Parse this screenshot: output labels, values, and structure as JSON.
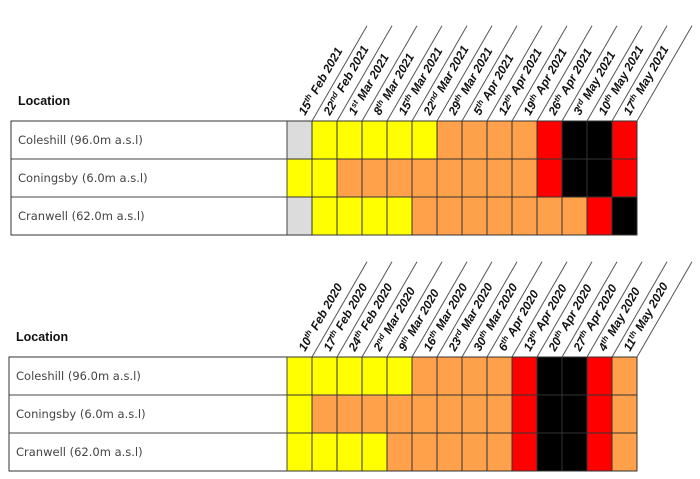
{
  "colors": {
    "gray": "#dcdcdc",
    "yellow": "#ffff00",
    "orange": "#ffa14a",
    "red": "#ff0000",
    "black": "#000000"
  },
  "chart_data": [
    {
      "type": "table",
      "header": "Location",
      "locations": [
        "Coleshill (96.0m a.s.l)",
        "Coningsby (6.0m a.s.l)",
        "Cranwell (62.0m a.s.l)"
      ],
      "dates": [
        {
          "day": "15",
          "suffix": "th",
          "rest": " Feb 2021"
        },
        {
          "day": "22",
          "suffix": "nd",
          "rest": " Feb 2021"
        },
        {
          "day": "1",
          "suffix": "st",
          "rest": " Mar 2021"
        },
        {
          "day": "8",
          "suffix": "th",
          "rest": " Mar 2021"
        },
        {
          "day": "15",
          "suffix": "th",
          "rest": " Mar 2021"
        },
        {
          "day": "22",
          "suffix": "nd",
          "rest": " Mar 2021"
        },
        {
          "day": "29",
          "suffix": "th",
          "rest": " Mar 2021"
        },
        {
          "day": "5",
          "suffix": "th",
          "rest": " Apr 2021"
        },
        {
          "day": "12",
          "suffix": "th",
          "rest": " Apr 2021"
        },
        {
          "day": "19",
          "suffix": "th",
          "rest": " Apr 2021"
        },
        {
          "day": "26",
          "suffix": "th",
          "rest": " Apr 2021"
        },
        {
          "day": "3",
          "suffix": "rd",
          "rest": " May 2021"
        },
        {
          "day": "10",
          "suffix": "th",
          "rest": " May 2021"
        },
        {
          "day": "17",
          "suffix": "th",
          "rest": " May 2021"
        }
      ],
      "cells": [
        [
          "gray",
          "yellow",
          "yellow",
          "yellow",
          "yellow",
          "yellow",
          "orange",
          "orange",
          "orange",
          "orange",
          "red",
          "black",
          "black",
          "red"
        ],
        [
          "yellow",
          "yellow",
          "orange",
          "orange",
          "orange",
          "orange",
          "orange",
          "orange",
          "orange",
          "orange",
          "red",
          "black",
          "black",
          "red"
        ],
        [
          "gray",
          "yellow",
          "yellow",
          "yellow",
          "yellow",
          "orange",
          "orange",
          "orange",
          "orange",
          "orange",
          "orange",
          "orange",
          "red",
          "black"
        ]
      ]
    },
    {
      "type": "table",
      "header": "Location",
      "locations": [
        "Coleshill (96.0m a.s.l)",
        "Coningsby (6.0m a.s.l)",
        "Cranwell (62.0m a.s.l)"
      ],
      "dates": [
        {
          "day": "10",
          "suffix": "th",
          "rest": " Feb 2020"
        },
        {
          "day": "17",
          "suffix": "th",
          "rest": " Feb 2020"
        },
        {
          "day": "24",
          "suffix": "th",
          "rest": " Feb 2020"
        },
        {
          "day": "2",
          "suffix": "nd",
          "rest": " Mar 2020"
        },
        {
          "day": "9",
          "suffix": "th",
          "rest": " Mar 2020"
        },
        {
          "day": "16",
          "suffix": "th",
          "rest": " Mar 2020"
        },
        {
          "day": "23",
          "suffix": "rd",
          "rest": " Mar 2020"
        },
        {
          "day": "30",
          "suffix": "th",
          "rest": " Mar 2020"
        },
        {
          "day": "6",
          "suffix": "th",
          "rest": " Apr 2020"
        },
        {
          "day": "13",
          "suffix": "th",
          "rest": " Apr 2020"
        },
        {
          "day": "20",
          "suffix": "th",
          "rest": " Apr 2020"
        },
        {
          "day": "27",
          "suffix": "th",
          "rest": " Apr 2020"
        },
        {
          "day": "4",
          "suffix": "th",
          "rest": " May 2020"
        },
        {
          "day": "11",
          "suffix": "th",
          "rest": " May 2020"
        }
      ],
      "cells": [
        [
          "yellow",
          "yellow",
          "yellow",
          "yellow",
          "yellow",
          "orange",
          "orange",
          "orange",
          "orange",
          "red",
          "black",
          "black",
          "red",
          "orange"
        ],
        [
          "yellow",
          "orange",
          "orange",
          "orange",
          "orange",
          "orange",
          "orange",
          "orange",
          "orange",
          "red",
          "black",
          "black",
          "red",
          "orange"
        ],
        [
          "yellow",
          "yellow",
          "yellow",
          "yellow",
          "orange",
          "orange",
          "orange",
          "orange",
          "orange",
          "red",
          "black",
          "black",
          "red",
          "orange"
        ]
      ]
    }
  ]
}
